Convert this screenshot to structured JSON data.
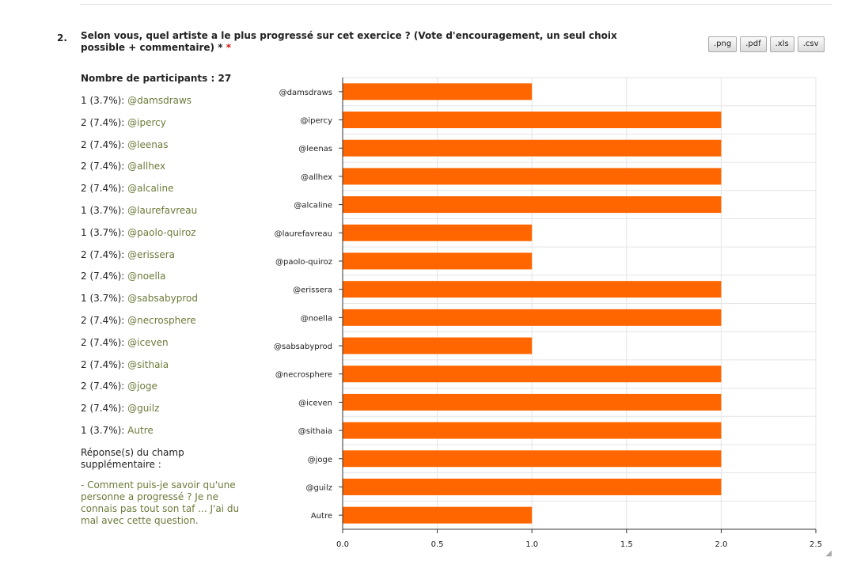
{
  "question": {
    "number": "2.",
    "title": "Selon vous, quel artiste a le plus progressé sur cet exercice ? (Vote d'encouragement, un seul choix possible + commentaire)",
    "required_marker": "*"
  },
  "exports": {
    "png": ".png",
    "pdf": ".pdf",
    "xls": ".xls",
    "csv": ".csv"
  },
  "summary": {
    "participants_label": "Nombre de participants : 27"
  },
  "results": [
    {
      "prefix": "1 (3.7%):",
      "name": "@damsdraws"
    },
    {
      "prefix": "2 (7.4%):",
      "name": "@ipercy"
    },
    {
      "prefix": "2 (7.4%):",
      "name": "@leenas"
    },
    {
      "prefix": "2 (7.4%):",
      "name": "@allhex"
    },
    {
      "prefix": "2 (7.4%):",
      "name": "@alcaline"
    },
    {
      "prefix": "1 (3.7%):",
      "name": "@laurefavreau"
    },
    {
      "prefix": "1 (3.7%):",
      "name": "@paolo-quiroz"
    },
    {
      "prefix": "2 (7.4%):",
      "name": "@erissera"
    },
    {
      "prefix": "2 (7.4%):",
      "name": "@noella"
    },
    {
      "prefix": "1 (3.7%):",
      "name": "@sabsabyprod"
    },
    {
      "prefix": "2 (7.4%):",
      "name": "@necrosphere"
    },
    {
      "prefix": "2 (7.4%):",
      "name": "@iceven"
    },
    {
      "prefix": "2 (7.4%):",
      "name": "@sithaia"
    },
    {
      "prefix": "2 (7.4%):",
      "name": "@joge"
    },
    {
      "prefix": "2 (7.4%):",
      "name": "@guilz"
    },
    {
      "prefix": "1 (3.7%):",
      "name": "Autre"
    }
  ],
  "extra_field": {
    "title": "Réponse(s) du champ supplémentaire :",
    "answer": "- Comment puis-je savoir qu'une personne a progressé ? Je ne connais pas tout son taf ... J'ai du mal avec cette question."
  },
  "chart_data": {
    "type": "bar",
    "orientation": "horizontal",
    "categories": [
      "@damsdraws",
      "@ipercy",
      "@leenas",
      "@allhex",
      "@alcaline",
      "@laurefavreau",
      "@paolo-quiroz",
      "@erissera",
      "@noella",
      "@sabsabyprod",
      "@necrosphere",
      "@iceven",
      "@sithaia",
      "@joge",
      "@guilz",
      "Autre"
    ],
    "values": [
      1,
      2,
      2,
      2,
      2,
      1,
      1,
      2,
      2,
      1,
      2,
      2,
      2,
      2,
      2,
      1
    ],
    "xlim": [
      0,
      2.5
    ],
    "x_ticks": [
      "0.0",
      "0.5",
      "1.0",
      "1.5",
      "2.0",
      "2.5"
    ],
    "grid": true,
    "bar_color": "#ff6600",
    "grid_color": "#e4e4e4"
  }
}
